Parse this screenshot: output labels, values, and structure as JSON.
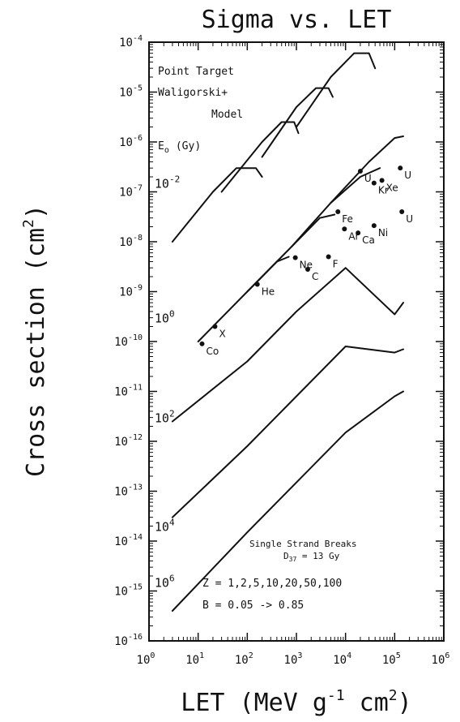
{
  "chart_data": {
    "type": "line",
    "title": "Sigma vs. LET",
    "xlabel_base": "LET (MeV g",
    "xlabel_exp": "-1",
    "xlabel_tail": " cm",
    "xlabel_exp2": "2",
    "xlabel_close": ")",
    "ylabel_base": "Cross section (cm",
    "ylabel_exp": "2",
    "ylabel_close": ")",
    "x_scale": "log",
    "y_scale": "log",
    "xlim": [
      1,
      1000000
    ],
    "ylim": [
      1e-16,
      0.0001
    ],
    "x_ticks": [
      {
        "base": "10",
        "exp": "0",
        "value": 1
      },
      {
        "base": "10",
        "exp": "1",
        "value": 10
      },
      {
        "base": "10",
        "exp": "2",
        "value": 100
      },
      {
        "base": "10",
        "exp": "3",
        "value": 1000
      },
      {
        "base": "10",
        "exp": "4",
        "value": 10000
      },
      {
        "base": "10",
        "exp": "5",
        "value": 100000
      },
      {
        "base": "10",
        "exp": "6",
        "value": 1000000
      }
    ],
    "y_ticks": [
      {
        "base": "10",
        "exp": "-4",
        "value": 0.0001
      },
      {
        "base": "10",
        "exp": "-5",
        "value": 1e-05
      },
      {
        "base": "10",
        "exp": "-6",
        "value": 1e-06
      },
      {
        "base": "10",
        "exp": "-7",
        "value": 1e-07
      },
      {
        "base": "10",
        "exp": "-8",
        "value": 1e-08
      },
      {
        "base": "10",
        "exp": "-9",
        "value": 1e-09
      },
      {
        "base": "10",
        "exp": "-10",
        "value": 1e-10
      },
      {
        "base": "10",
        "exp": "-11",
        "value": 1e-11
      },
      {
        "base": "10",
        "exp": "-12",
        "value": 1e-12
      },
      {
        "base": "10",
        "exp": "-13",
        "value": 1e-13
      },
      {
        "base": "10",
        "exp": "-14",
        "value": 1e-14
      },
      {
        "base": "10",
        "exp": "-15",
        "value": 1e-15
      },
      {
        "base": "10",
        "exp": "-16",
        "value": 1e-16
      }
    ],
    "annotations": {
      "model_line1": "Point Target",
      "model_line2": "Waligorski+",
      "model_line3": "Model",
      "e0_label": "E",
      "e0_sub": "o",
      "e0_unit": "(Gy)",
      "breaks_line1": "Single Strand Breaks",
      "breaks_d": "D",
      "breaks_d_sub": "37",
      "breaks_d_val": " = 13 Gy",
      "z_line": "Z = 1,2,5,10,20,50,100",
      "b_line": "B = 0.05 -> 0.85"
    },
    "dose_labels": [
      {
        "base": "10",
        "exp": "-2",
        "E0": 0.01
      },
      {
        "base": "10",
        "exp": "0",
        "E0": 1
      },
      {
        "base": "10",
        "exp": "2",
        "E0": 100
      },
      {
        "base": "10",
        "exp": "4",
        "E0": 10000
      },
      {
        "base": "10",
        "exp": "6",
        "E0": 1000000
      }
    ],
    "ion_points": [
      {
        "label": "X",
        "x": 22,
        "y": 2e-10
      },
      {
        "label": "Co",
        "x": 12,
        "y": 9e-11
      },
      {
        "label": "He",
        "x": 160,
        "y": 1.4e-09
      },
      {
        "label": "C",
        "x": 1700,
        "y": 2.8e-09
      },
      {
        "label": "Ne",
        "x": 950,
        "y": 4.8e-09
      },
      {
        "label": "F",
        "x": 4500,
        "y": 5e-09
      },
      {
        "label": "Fe",
        "x": 7000,
        "y": 4e-08
      },
      {
        "label": "Ar",
        "x": 9500,
        "y": 1.8e-08
      },
      {
        "label": "Ca",
        "x": 18000,
        "y": 1.5e-08
      },
      {
        "label": "Ni",
        "x": 38000,
        "y": 2.1e-08
      },
      {
        "label": "U",
        "x": 20000,
        "y": 2.6e-07
      },
      {
        "label": "Xe",
        "x": 55000,
        "y": 1.7e-07
      },
      {
        "label": "Kr",
        "x": 38000,
        "y": 1.5e-07
      },
      {
        "label": "U",
        "x": 130000,
        "y": 3e-07
      },
      {
        "label": "U",
        "x": 140000,
        "y": 4e-08
      }
    ],
    "series": [
      {
        "E0": 0.01,
        "curves": [
          {
            "x": [
              3,
              20,
              60,
              150,
              200
            ],
            "y": [
              1e-08,
              1e-07,
              3e-07,
              3e-07,
              2e-07
            ]
          },
          {
            "x": [
              30,
              200,
              500,
              900,
              1100
            ],
            "y": [
              1e-07,
              1e-06,
              2.5e-06,
              2.5e-06,
              1.5e-06
            ]
          },
          {
            "x": [
              200,
              1000,
              2500,
              4500,
              5500
            ],
            "y": [
              5e-07,
              5e-06,
              1.2e-05,
              1.2e-05,
              8e-06
            ]
          },
          {
            "x": [
              1000,
              5000,
              15000,
              30000,
              40000
            ],
            "y": [
              2e-06,
              2e-05,
              6e-05,
              6e-05,
              3e-05
            ]
          }
        ]
      },
      {
        "E0": 1,
        "curves": [
          {
            "x": [
              10,
              100,
              400,
              700
            ],
            "y": [
              1e-10,
              1e-09,
              4e-09,
              5e-09
            ]
          },
          {
            "x": [
              100,
              800,
              3000,
              6000
            ],
            "y": [
              1e-09,
              8e-09,
              3e-08,
              3.5e-08
            ]
          },
          {
            "x": [
              800,
              5000,
              20000,
              50000
            ],
            "y": [
              8e-09,
              6e-08,
              2e-07,
              3e-07
            ]
          },
          {
            "x": [
              5000,
              30000,
              100000,
              150000
            ],
            "y": [
              6e-08,
              4e-07,
              1.2e-06,
              1.3e-06
            ]
          }
        ]
      },
      {
        "E0": 100,
        "curves": [
          {
            "x": [
              3,
              100,
              1000,
              10000,
              100000,
              150000
            ],
            "y": [
              2.5e-12,
              4e-11,
              4e-10,
              3e-09,
              3.5e-10,
              6e-10
            ]
          }
        ]
      },
      {
        "E0": 10000,
        "curves": [
          {
            "x": [
              3,
              100,
              1000,
              10000,
              100000,
              150000
            ],
            "y": [
              3e-14,
              8e-13,
              8e-12,
              8e-11,
              6e-11,
              7e-11
            ]
          }
        ]
      },
      {
        "E0": 1000000,
        "curves": [
          {
            "x": [
              3,
              100,
              1000,
              10000,
              100000,
              150000
            ],
            "y": [
              4e-16,
              1.5e-14,
              1.5e-13,
              1.5e-12,
              8e-12,
              1e-11
            ]
          }
        ]
      }
    ],
    "grid": false
  }
}
